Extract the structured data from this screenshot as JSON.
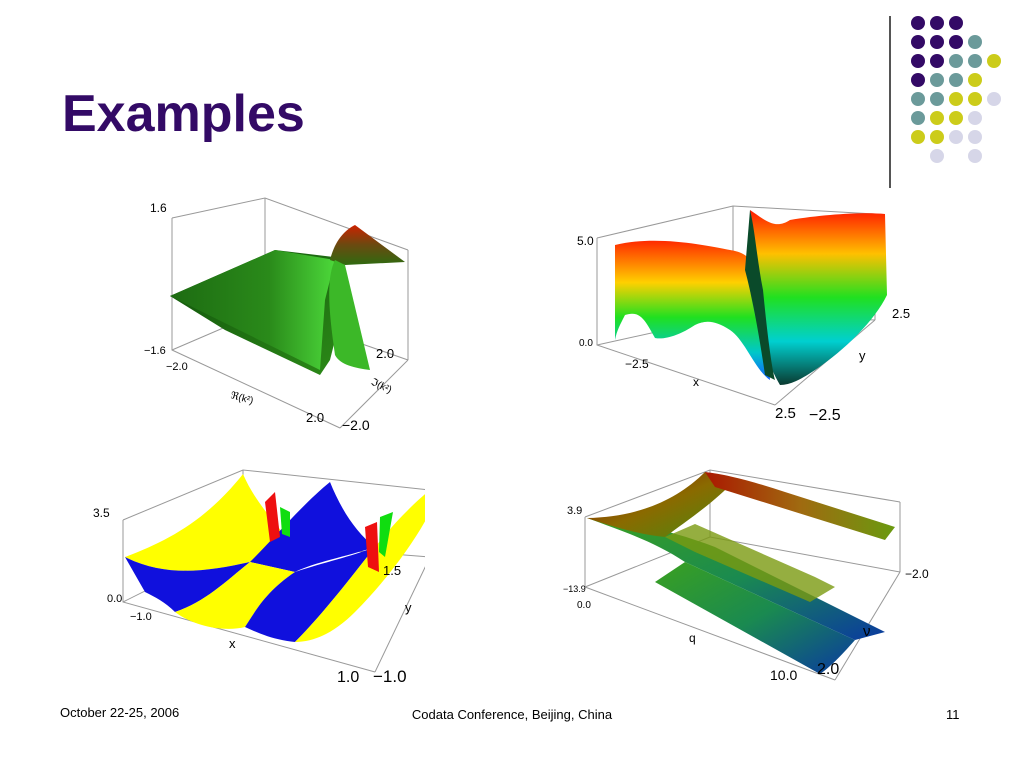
{
  "slide": {
    "title": "Examples",
    "footer_date": "October 22-25, 2006",
    "footer_center": "Codata Conference, Beijing, China",
    "page_number": "11"
  },
  "decoration": {
    "dot_colors": {
      "purple": "#330a66",
      "teal": "#6b9a9a",
      "yellow": "#cccc1a",
      "lavender": "#d6d6e8"
    }
  },
  "plots": [
    {
      "z_max": "1.6",
      "z_min": "−1.6",
      "x_start": "−2.0",
      "x_end": "2.0",
      "x_label": "ℜ(k²)",
      "y_end": "2.0",
      "y_start": "−2.0",
      "y_label": "ℑ(k²)"
    },
    {
      "z_max": "5.0",
      "z_min": "0.0",
      "x_start": "−2.5",
      "x_end": "2.5",
      "x_label": "x",
      "y_end": "2.5",
      "y_start": "−2.5",
      "y_label": "y"
    },
    {
      "z_max": "3.5",
      "z_min": "0.0",
      "x_start": "−1.0",
      "x_end": "1.0",
      "x_label": "x",
      "y_end": "1.5",
      "y_start": "−1.0",
      "y_label": "y"
    },
    {
      "z_max": "3.9",
      "z_min": "−13.9",
      "x_start": "0.0",
      "x_end": "10.0",
      "x_label": "q",
      "y_end": "−2.0",
      "y_start": "2.0",
      "y_label": "ν"
    }
  ]
}
